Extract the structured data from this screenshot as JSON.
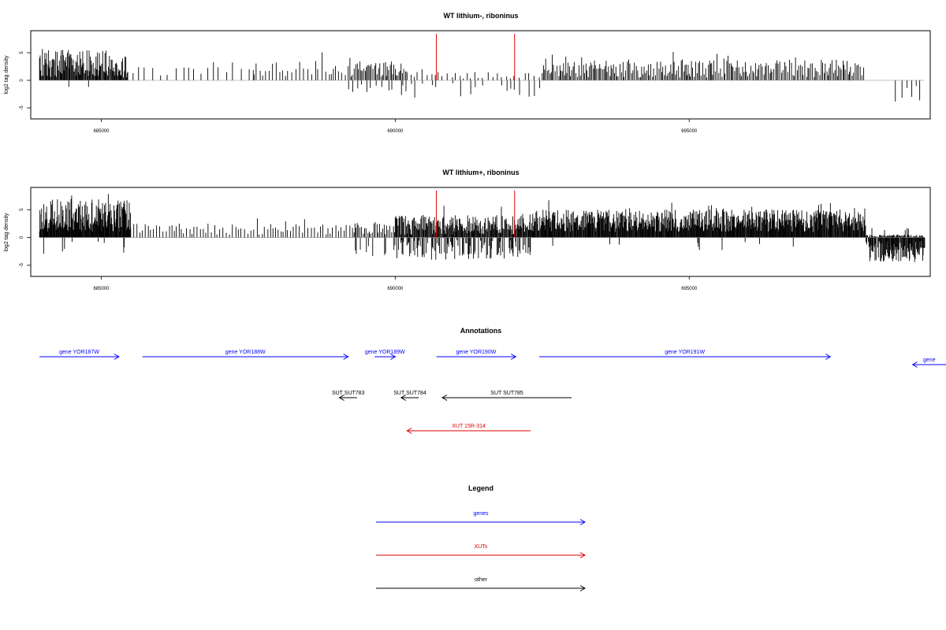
{
  "chart_data": [
    {
      "type": "bar",
      "title": "WT lithium-, riboninus",
      "ylabel": "log2 tag density",
      "xlim": [
        683800,
        699100
      ],
      "ylim": [
        -7,
        9
      ],
      "x_ticks": [
        685000,
        690000,
        695000
      ],
      "y_ticks": [
        -5,
        0,
        5
      ],
      "highlight_lines": [
        690700,
        692030
      ],
      "highlight_color": "#e00000",
      "bar_color": "#000000",
      "segments": [
        {
          "from": 683950,
          "to": 685450,
          "step": 12,
          "hi": 5.5,
          "lo": 0.5,
          "negp": 0.02,
          "neg": 1.5
        },
        {
          "from": 685450,
          "to": 687600,
          "step": 110,
          "hi": 2.5,
          "lo": 0.8,
          "negp": 0.0,
          "neg": 0
        },
        {
          "from": 687600,
          "to": 689200,
          "step": 55,
          "hi": 3.5,
          "lo": 0.8,
          "negp": 0.0,
          "neg": 0
        },
        {
          "from": 689200,
          "to": 690200,
          "step": 22,
          "hi": 3.5,
          "lo": 0.5,
          "negp": 0.15,
          "neg": 2.5
        },
        {
          "from": 690200,
          "to": 692500,
          "step": 75,
          "hi": 1.5,
          "lo": 0.3,
          "negp": 0.55,
          "neg": 2.8
        },
        {
          "from": 692500,
          "to": 698000,
          "step": 24,
          "hi": 3.8,
          "lo": 0.5,
          "negp": 0.0,
          "neg": 0
        },
        {
          "from": 698500,
          "to": 699000,
          "step": 90,
          "hi": 0.0,
          "lo": 0.0,
          "negp": 1.0,
          "neg": 3.5
        }
      ]
    },
    {
      "type": "bar",
      "title": "WT lithium+, riboninus",
      "ylabel": "log2 tag density",
      "xlim": [
        683800,
        699100
      ],
      "ylim": [
        -7,
        9
      ],
      "x_ticks": [
        685000,
        690000,
        695000
      ],
      "y_ticks": [
        -5,
        0,
        5
      ],
      "highlight_lines": [
        690700,
        692030
      ],
      "highlight_color": "#e00000",
      "bar_color": "#000000",
      "segments": [
        {
          "from": 683950,
          "to": 685500,
          "step": 9,
          "hi": 7.0,
          "lo": 1.0,
          "negp": 0.03,
          "neg": 2.5
        },
        {
          "from": 685500,
          "to": 689300,
          "step": 45,
          "hi": 2.5,
          "lo": 0.5,
          "negp": 0.05,
          "neg": 2.0
        },
        {
          "from": 689300,
          "to": 690000,
          "step": 25,
          "hi": 3.0,
          "lo": 0.5,
          "negp": 0.3,
          "neg": 3.5
        },
        {
          "from": 690000,
          "to": 692300,
          "step": 12,
          "hi": 4.0,
          "lo": 0.5,
          "negp": 0.5,
          "neg": 3.5
        },
        {
          "from": 692300,
          "to": 698000,
          "step": 10,
          "hi": 5.0,
          "lo": 1.0,
          "negp": 0.02,
          "neg": 2.0
        },
        {
          "from": 698000,
          "to": 699000,
          "step": 10,
          "hi": 0.5,
          "lo": 0.0,
          "negp": 0.92,
          "neg": 4.0
        }
      ]
    }
  ],
  "annotations": {
    "title": "Annotations",
    "items": [
      {
        "label": "gene YOR187W",
        "start": 683950,
        "end": 685300,
        "strand": "+",
        "color": "#0000ff",
        "row": 0
      },
      {
        "label": "gene YOR188W",
        "start": 685700,
        "end": 689200,
        "strand": "+",
        "color": "#0000ff",
        "row": 0
      },
      {
        "label": "gene YOR189W",
        "start": 689650,
        "end": 690000,
        "strand": "+",
        "color": "#0000ff",
        "row": 0
      },
      {
        "label": "gene YOR190W",
        "start": 690700,
        "end": 692050,
        "strand": "+",
        "color": "#0000ff",
        "row": 0
      },
      {
        "label": "gene YOR191W",
        "start": 692450,
        "end": 697400,
        "strand": "+",
        "color": "#0000ff",
        "row": 0
      },
      {
        "label": "gene",
        "start": 698800,
        "end": 699900,
        "strand": "-",
        "color": "#0000ff",
        "row": 1
      },
      {
        "label": "SUT SUT783",
        "start": 689050,
        "end": 689350,
        "strand": "-",
        "color": "#000000",
        "row": 2
      },
      {
        "label": "SUT SUT784",
        "start": 690100,
        "end": 690400,
        "strand": "-",
        "color": "#000000",
        "row": 2
      },
      {
        "label": "SUT SUT785",
        "start": 690800,
        "end": 693000,
        "strand": "-",
        "color": "#000000",
        "row": 2
      },
      {
        "label": "XUT 15R-314",
        "start": 690200,
        "end": 692300,
        "strand": "-",
        "color": "#e00000",
        "row": 3
      }
    ]
  },
  "legend": {
    "title": "Legend",
    "items": [
      {
        "label": "genes",
        "color": "#0000ff"
      },
      {
        "label": "XUTs",
        "color": "#e00000"
      },
      {
        "label": "other",
        "color": "#000000"
      }
    ]
  }
}
